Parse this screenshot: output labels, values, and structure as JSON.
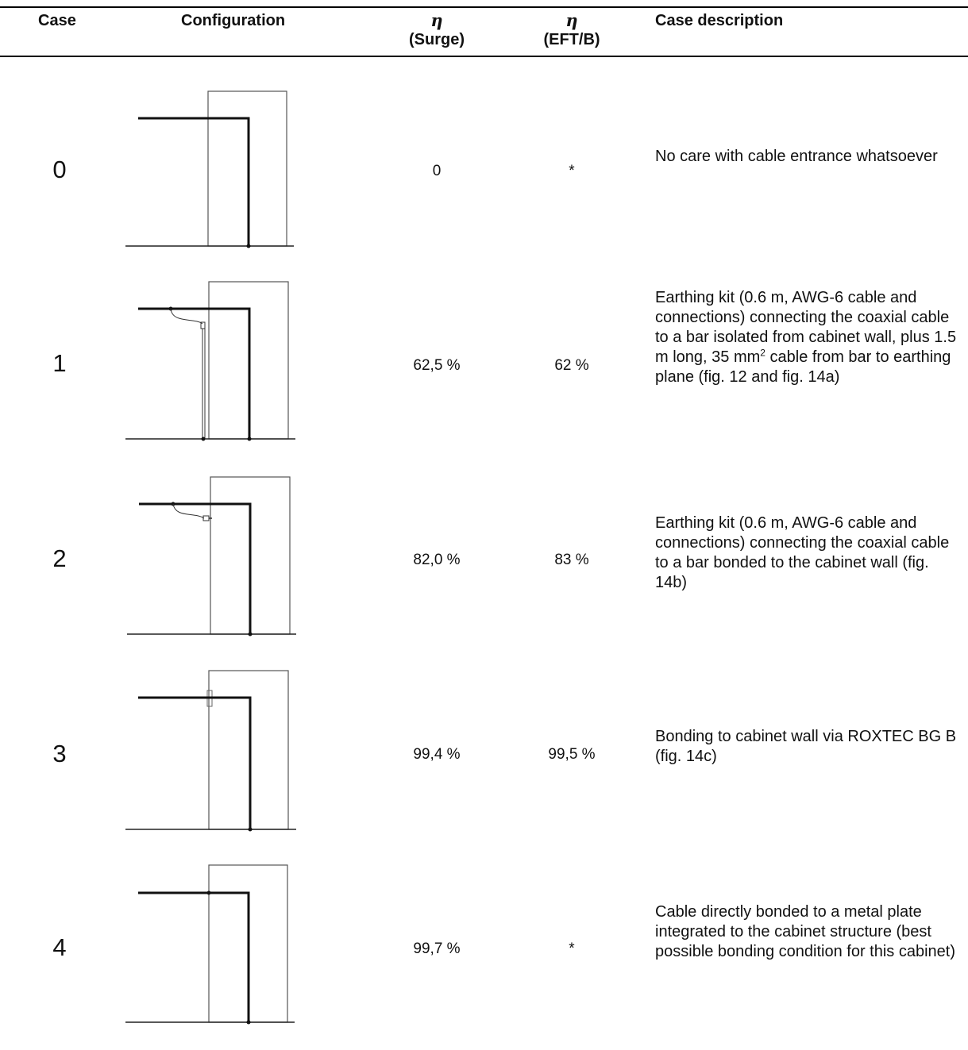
{
  "headers": {
    "case": "Case",
    "configuration": "Configuration",
    "eta_symbol": "η",
    "surge": "(Surge)",
    "eft": "(EFT/B)",
    "description": "Case description"
  },
  "rows": [
    {
      "case": "0",
      "surge": "0",
      "eft": "*",
      "description": "No care with cable entrance whatsoever"
    },
    {
      "case": "1",
      "surge": "62,5 %",
      "eft": "62 %",
      "description_pre": "Earthing kit (0.6 m, AWG-6 cable and connections) connecting the coaxial cable to a bar isolated from cabinet wall, plus 1.5 m long, 35 mm",
      "description_sup": "2",
      "description_post": " cable from bar to earthing plane (fig. 12 and fig. 14a)"
    },
    {
      "case": "2",
      "surge": "82,0 %",
      "eft": "83 %",
      "description": "Earthing kit (0.6 m, AWG-6 cable and connections) connecting the coaxial cable to a bar bonded to the cabinet wall (fig. 14b)"
    },
    {
      "case": "3",
      "surge": "99,4 %",
      "eft": "99,5 %",
      "description": "Bonding to cabinet wall via ROXTEC BG B (fig. 14c)"
    },
    {
      "case": "4",
      "surge": "99,7 %",
      "eft": "*",
      "description": "Cable directly bonded to a metal plate integrated to the cabinet structure (best possible bonding condition for this cabinet)"
    }
  ]
}
